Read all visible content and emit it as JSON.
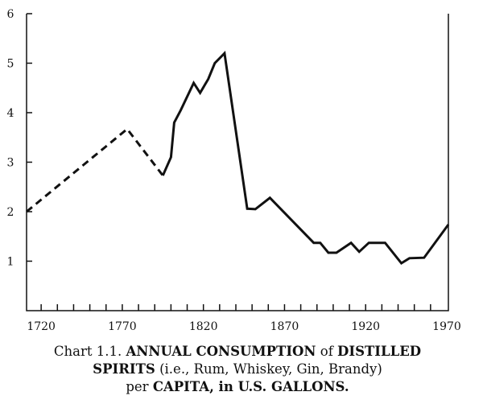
{
  "chart_data": {
    "type": "line",
    "title": "",
    "xlabel": "",
    "ylabel": "",
    "xlim": [
      1711,
      1971
    ],
    "ylim": [
      0,
      6
    ],
    "grid": false,
    "x_tick_labels": [
      "1720",
      "1770",
      "1820",
      "1870",
      "1920",
      "1970"
    ],
    "y_tick_labels": [
      "1",
      "2",
      "3",
      "4",
      "5",
      "6"
    ],
    "series": [
      {
        "style": "dashed",
        "points": [
          [
            1711,
            2.0
          ],
          [
            1773,
            3.67
          ],
          [
            1795,
            2.73
          ]
        ]
      },
      {
        "style": "solid",
        "points": [
          [
            1795,
            2.73
          ],
          [
            1800,
            3.1
          ],
          [
            1802,
            3.8
          ],
          [
            1806,
            4.05
          ],
          [
            1814,
            4.6
          ],
          [
            1818,
            4.4
          ],
          [
            1823,
            4.68
          ],
          [
            1827,
            5.0
          ],
          [
            1833,
            5.2
          ],
          [
            1847,
            2.06
          ],
          [
            1852,
            2.05
          ],
          [
            1861,
            2.28
          ],
          [
            1888,
            1.37
          ],
          [
            1892,
            1.37
          ],
          [
            1897,
            1.17
          ],
          [
            1902,
            1.17
          ],
          [
            1911,
            1.37
          ],
          [
            1916,
            1.19
          ],
          [
            1922,
            1.37
          ],
          [
            1932,
            1.37
          ],
          [
            1942,
            0.96
          ],
          [
            1947,
            1.06
          ],
          [
            1956,
            1.07
          ],
          [
            1971,
            1.74
          ]
        ]
      }
    ],
    "color": "#111111"
  },
  "caption": {
    "line1": [
      {
        "text": "Chart 1.1. ",
        "bold": false
      },
      {
        "text": "ANNUAL CONSUMPTION",
        "bold": true
      },
      {
        "text": " of ",
        "bold": false
      },
      {
        "text": "DISTILLED",
        "bold": true
      }
    ],
    "line2": [
      {
        "text": "SPIRITS",
        "bold": true
      },
      {
        "text": " (i.e., Rum, Whiskey, Gin, Brandy)",
        "bold": false
      }
    ],
    "line3": [
      {
        "text": "per ",
        "bold": false
      },
      {
        "text": "CAPITA,",
        "bold": true
      },
      {
        "text": " in U.S. GALLONS.",
        "bold": true
      }
    ]
  }
}
